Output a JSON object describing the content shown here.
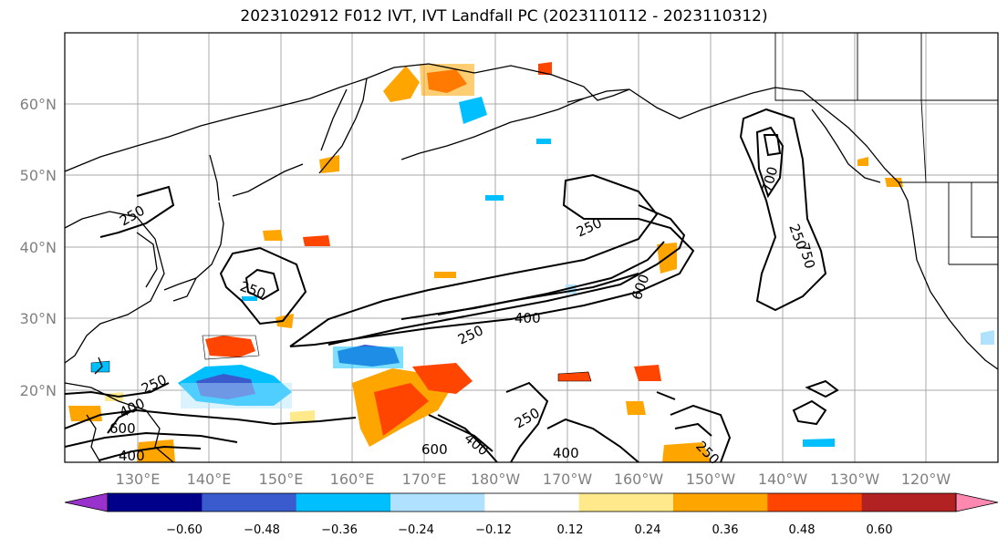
{
  "title": "2023102912 F012 IVT, IVT Landfall PC (2023110112 - 2023110312)",
  "map": {
    "lat_labels": [
      "60°N",
      "50°N",
      "40°N",
      "30°N",
      "20°N"
    ],
    "lon_labels": [
      "130°E",
      "140°E",
      "150°E",
      "160°E",
      "170°E",
      "180°W",
      "170°W",
      "160°W",
      "150°W",
      "140°W",
      "130°W",
      "120°W"
    ],
    "grid": true,
    "contour_labels": [
      "250",
      "250",
      "250",
      "250",
      "250",
      "250",
      "250",
      "250",
      "400",
      "400",
      "400",
      "400",
      "400",
      "600",
      "600",
      "600",
      "700",
      "750"
    ]
  },
  "colorbar": {
    "ticks": [
      "−0.60",
      "−0.48",
      "−0.36",
      "−0.24",
      "−0.12",
      "0.12",
      "0.24",
      "0.36",
      "0.48",
      "0.60"
    ],
    "colors": [
      "#9932cc",
      "#00008b",
      "#3a5bcd",
      "#00bfff",
      "#b0e2ff",
      "#ffffff",
      "#ffe98a",
      "#ffa500",
      "#ff4500",
      "#b22222",
      "#ff88b0"
    ]
  }
}
